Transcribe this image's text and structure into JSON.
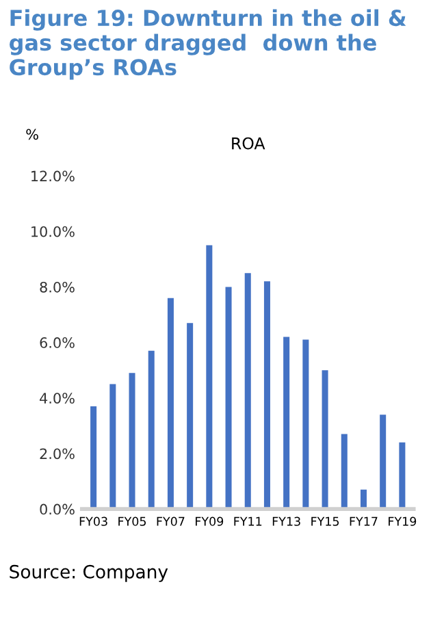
{
  "chart_data": {
    "type": "bar",
    "title": "Figure 19: Downturn in the oil & gas sector dragged  down the Group’s ROAs",
    "subtitle": "ROA",
    "ylabel": "%",
    "categories": [
      "FY03",
      null,
      "FY05",
      null,
      "FY07",
      null,
      "FY09",
      null,
      "FY11",
      null,
      "FY13",
      null,
      "FY15",
      null,
      "FY17",
      null,
      "FY19"
    ],
    "values": [
      3.7,
      4.5,
      4.9,
      5.7,
      7.6,
      6.7,
      9.5,
      8.0,
      8.5,
      8.2,
      6.2,
      6.1,
      5.0,
      2.7,
      0.7,
      3.4,
      2.4
    ],
    "color": "#4472c4",
    "ylim": [
      0,
      12
    ],
    "yticks": [
      {
        "value": 0,
        "label": "0.0%"
      },
      {
        "value": 2,
        "label": "2.0%"
      },
      {
        "value": 4,
        "label": "4.0%"
      },
      {
        "value": 6,
        "label": "6.0%"
      },
      {
        "value": 8,
        "label": "8.0%"
      },
      {
        "value": 10,
        "label": "10.0%"
      },
      {
        "value": 12,
        "label": "12.0%"
      }
    ],
    "grid": false,
    "legend": false,
    "annotations": [
      "Source: Company"
    ]
  }
}
